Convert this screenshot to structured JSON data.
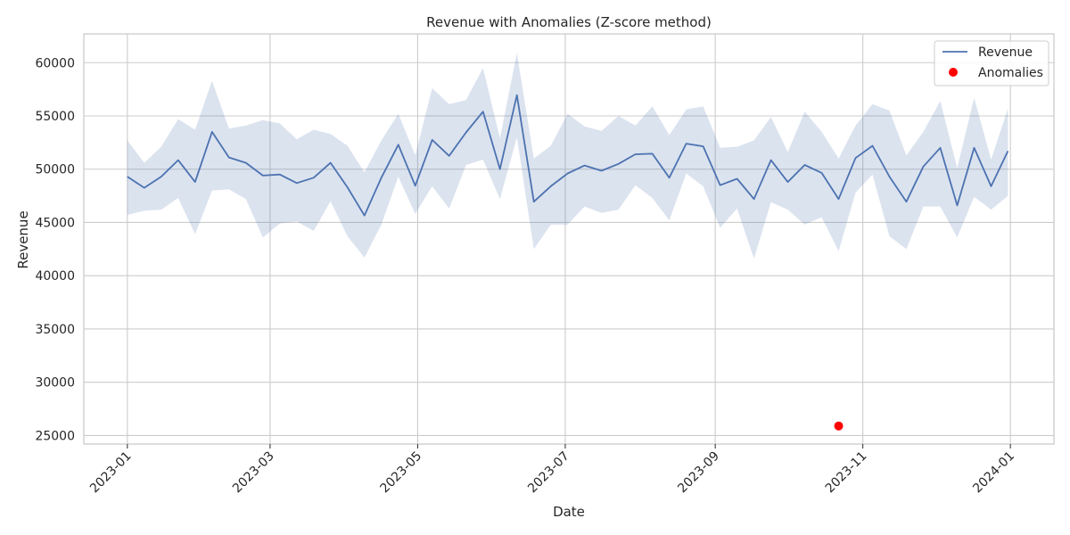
{
  "chart_data": {
    "type": "line",
    "title": "Revenue with Anomalies (Z-score method)",
    "xlabel": "Date",
    "ylabel": "Revenue",
    "xlim": [
      "2022-12-14",
      "2024-01-19"
    ],
    "ylim": [
      24200,
      62700
    ],
    "x_ticks": [
      "2023-01",
      "2023-03",
      "2023-05",
      "2023-07",
      "2023-09",
      "2023-11",
      "2024-01"
    ],
    "x_tick_dates": [
      "2023-01-01",
      "2023-03-01",
      "2023-05-01",
      "2023-07-01",
      "2023-09-01",
      "2023-11-01",
      "2024-01-01"
    ],
    "y_ticks": [
      25000,
      30000,
      35000,
      40000,
      45000,
      50000,
      55000,
      60000
    ],
    "grid": true,
    "legend_position": "top-right",
    "colors": {
      "line": "#4c72b0",
      "band": "#4c72b0",
      "anomaly": "#ff0000",
      "grid": "#cccccc"
    },
    "series": [
      {
        "name": "Revenue",
        "type": "line",
        "x": [
          "2023-01-01",
          "2023-01-08",
          "2023-01-15",
          "2023-01-22",
          "2023-01-29",
          "2023-02-05",
          "2023-02-12",
          "2023-02-19",
          "2023-02-26",
          "2023-03-05",
          "2023-03-12",
          "2023-03-19",
          "2023-03-26",
          "2023-04-02",
          "2023-04-09",
          "2023-04-16",
          "2023-04-23",
          "2023-04-30",
          "2023-05-07",
          "2023-05-14",
          "2023-05-21",
          "2023-05-28",
          "2023-06-04",
          "2023-06-11",
          "2023-06-18",
          "2023-06-25",
          "2023-07-02",
          "2023-07-09",
          "2023-07-16",
          "2023-07-23",
          "2023-07-30",
          "2023-08-06",
          "2023-08-13",
          "2023-08-20",
          "2023-08-27",
          "2023-09-03",
          "2023-09-10",
          "2023-09-17",
          "2023-09-24",
          "2023-10-01",
          "2023-10-08",
          "2023-10-15",
          "2023-10-22",
          "2023-10-29",
          "2023-11-05",
          "2023-11-12",
          "2023-11-19",
          "2023-11-26",
          "2023-12-03",
          "2023-12-10",
          "2023-12-17",
          "2023-12-24",
          "2023-12-31"
        ],
        "values": [
          49300,
          48250,
          49300,
          50850,
          48800,
          53500,
          51100,
          50600,
          49400,
          49500,
          48700,
          49200,
          50600,
          48300,
          45650,
          49200,
          52300,
          48450,
          52750,
          51250,
          53450,
          55400,
          50000,
          56950,
          46950,
          48400,
          49600,
          50350,
          49850,
          50500,
          51400,
          51450,
          49200,
          52400,
          52150,
          48500,
          49100,
          47200,
          50850,
          48800,
          50400,
          49650,
          47200,
          51050,
          52200,
          49300,
          46950,
          50250,
          52000,
          46600,
          52000,
          48400,
          51700
        ],
        "band_lower": [
          45700,
          46100,
          46200,
          47300,
          43900,
          48000,
          48100,
          47200,
          43600,
          44900,
          45100,
          44200,
          47000,
          43700,
          41700,
          44800,
          49300,
          45800,
          48400,
          46300,
          50400,
          50900,
          47200,
          53000,
          42500,
          44800,
          44800,
          46500,
          45900,
          46200,
          48500,
          47300,
          45200,
          49600,
          48400,
          44500,
          46300,
          41600,
          46900,
          46200,
          44800,
          45500,
          42300,
          47800,
          49500,
          43700,
          42500,
          46500,
          46500,
          43600,
          47400,
          46200,
          47500
        ],
        "band_upper": [
          52700,
          50600,
          52100,
          54700,
          53700,
          58300,
          53800,
          54100,
          54600,
          54300,
          52800,
          53700,
          53300,
          52200,
          49700,
          52700,
          55200,
          51300,
          57600,
          56100,
          56500,
          59500,
          52900,
          60900,
          51000,
          52200,
          55200,
          54000,
          53600,
          55000,
          54100,
          55900,
          53200,
          55600,
          55900,
          52000,
          52100,
          52700,
          54900,
          51600,
          55400,
          53500,
          51000,
          54100,
          56100,
          55500,
          51300,
          53500,
          56400,
          50100,
          56700,
          50900,
          55700
        ]
      },
      {
        "name": "Anomalies",
        "type": "scatter",
        "x": [
          "2023-10-22"
        ],
        "values": [
          25900
        ]
      }
    ]
  }
}
